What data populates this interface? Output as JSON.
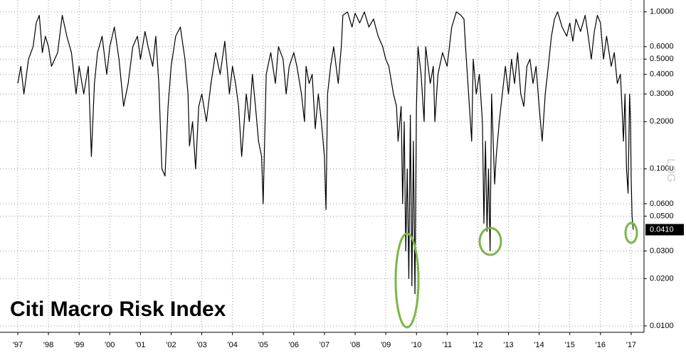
{
  "chart_data": {
    "type": "line",
    "title": "Citi Macro Risk Index",
    "scale_label": "LOG",
    "log_scale": true,
    "grid": true,
    "color": "#000000",
    "last_value": {
      "value": 0.041,
      "label": "0.0410"
    },
    "xlim": [
      1996.42,
      2017.42
    ],
    "xticks": [
      {
        "value": 1997,
        "label": "'97"
      },
      {
        "value": 1998,
        "label": "'98"
      },
      {
        "value": 1999,
        "label": "'99"
      },
      {
        "value": 2000,
        "label": "'00"
      },
      {
        "value": 2001,
        "label": "'01"
      },
      {
        "value": 2002,
        "label": "'02"
      },
      {
        "value": 2003,
        "label": "'03"
      },
      {
        "value": 2004,
        "label": "'04"
      },
      {
        "value": 2005,
        "label": "'05"
      },
      {
        "value": 2006,
        "label": "'06"
      },
      {
        "value": 2007,
        "label": "'07"
      },
      {
        "value": 2008,
        "label": "'08"
      },
      {
        "value": 2009,
        "label": "'09"
      },
      {
        "value": 2010,
        "label": "'10"
      },
      {
        "value": 2011,
        "label": "'11"
      },
      {
        "value": 2012,
        "label": "'12"
      },
      {
        "value": 2013,
        "label": "'13"
      },
      {
        "value": 2014,
        "label": "'14"
      },
      {
        "value": 2015,
        "label": "'15"
      },
      {
        "value": 2016,
        "label": "'16"
      },
      {
        "value": 2017,
        "label": "'17"
      }
    ],
    "ylim": [
      0.0091,
      1.19
    ],
    "yticks": [
      {
        "value": 1,
        "label": "1.0000"
      },
      {
        "value": 0.6,
        "label": "0.6000"
      },
      {
        "value": 0.5,
        "label": "0.5000"
      },
      {
        "value": 0.4,
        "label": "0.4000"
      },
      {
        "value": 0.3,
        "label": "0.3000"
      },
      {
        "value": 0.2,
        "label": "0.2000"
      },
      {
        "value": 0.1,
        "label": "0.1000"
      },
      {
        "value": 0.06,
        "label": "0.0600"
      },
      {
        "value": 0.05,
        "label": "0.0500"
      },
      {
        "value": 0.03,
        "label": "0.0300"
      },
      {
        "value": 0.02,
        "label": "0.0200"
      },
      {
        "value": 0.01,
        "label": "0.0100"
      }
    ],
    "x": [
      1997.0,
      1997.1,
      1997.2,
      1997.35,
      1997.5,
      1997.6,
      1997.7,
      1997.8,
      1997.9,
      1998.0,
      1998.1,
      1998.3,
      1998.45,
      1998.6,
      1998.75,
      1998.9,
      1999.0,
      1999.15,
      1999.3,
      1999.4,
      1999.5,
      1999.6,
      1999.75,
      1999.9,
      2000.0,
      2000.15,
      2000.3,
      2000.45,
      2000.6,
      2000.75,
      2000.9,
      2001.0,
      2001.15,
      2001.25,
      2001.4,
      2001.5,
      2001.6,
      2001.7,
      2001.8,
      2001.9,
      2002.0,
      2002.15,
      2002.3,
      2002.45,
      2002.55,
      2002.6,
      2002.7,
      2002.8,
      2002.9,
      2003.0,
      2003.15,
      2003.3,
      2003.45,
      2003.6,
      2003.75,
      2003.9,
      2004.0,
      2004.1,
      2004.2,
      2004.3,
      2004.45,
      2004.55,
      2004.65,
      2004.75,
      2004.85,
      2004.95,
      2005.0,
      2005.1,
      2005.25,
      2005.4,
      2005.5,
      2005.65,
      2005.75,
      2005.85,
      2006.0,
      2006.1,
      2006.25,
      2006.35,
      2006.4,
      2006.5,
      2006.6,
      2006.7,
      2006.8,
      2006.9,
      2007.0,
      2007.05,
      2007.1,
      2007.2,
      2007.3,
      2007.45,
      2007.55,
      2007.6,
      2007.75,
      2007.9,
      2008.0,
      2008.15,
      2008.3,
      2008.45,
      2008.6,
      2008.75,
      2008.9,
      2009.0,
      2009.1,
      2009.25,
      2009.35,
      2009.4,
      2009.5,
      2009.55,
      2009.6,
      2009.65,
      2009.7,
      2009.75,
      2009.8,
      2009.85,
      2009.9,
      2009.95,
      2010.0,
      2010.05,
      2010.15,
      2010.25,
      2010.3,
      2010.45,
      2010.55,
      2010.6,
      2010.7,
      2010.85,
      2011.0,
      2011.15,
      2011.3,
      2011.45,
      2011.55,
      2011.6,
      2011.7,
      2011.8,
      2011.85,
      2011.95,
      2012.05,
      2012.15,
      2012.2,
      2012.25,
      2012.3,
      2012.35,
      2012.4,
      2012.45,
      2012.55,
      2012.6,
      2012.7,
      2012.8,
      2012.9,
      2013.0,
      2013.1,
      2013.2,
      2013.3,
      2013.4,
      2013.5,
      2013.6,
      2013.7,
      2013.8,
      2013.9,
      2014.0,
      2014.1,
      2014.2,
      2014.3,
      2014.4,
      2014.5,
      2014.6,
      2014.75,
      2014.9,
      2015.0,
      2015.1,
      2015.2,
      2015.35,
      2015.5,
      2015.6,
      2015.7,
      2015.8,
      2015.9,
      2016.0,
      2016.1,
      2016.2,
      2016.35,
      2016.45,
      2016.55,
      2016.65,
      2016.7,
      2016.75,
      2016.8,
      2016.85,
      2016.9,
      2016.95,
      2016.98,
      2017.0,
      2017.03,
      2017.07
    ],
    "values": [
      0.35,
      0.45,
      0.3,
      0.5,
      0.6,
      0.85,
      0.95,
      0.55,
      0.7,
      0.6,
      0.45,
      0.55,
      0.95,
      0.7,
      0.55,
      0.3,
      0.45,
      0.3,
      0.45,
      0.12,
      0.35,
      0.55,
      0.7,
      0.4,
      0.6,
      0.8,
      0.5,
      0.25,
      0.35,
      0.6,
      0.7,
      0.5,
      0.75,
      0.6,
      0.45,
      0.7,
      0.35,
      0.1,
      0.09,
      0.25,
      0.45,
      0.7,
      0.8,
      0.5,
      0.3,
      0.14,
      0.2,
      0.1,
      0.25,
      0.3,
      0.2,
      0.35,
      0.55,
      0.4,
      0.65,
      0.3,
      0.45,
      0.35,
      0.25,
      0.12,
      0.3,
      0.2,
      0.4,
      0.25,
      0.15,
      0.12,
      0.06,
      0.4,
      0.55,
      0.35,
      0.6,
      0.5,
      0.3,
      0.45,
      0.55,
      0.45,
      0.3,
      0.2,
      0.45,
      0.35,
      0.4,
      0.18,
      0.3,
      0.2,
      0.12,
      0.055,
      0.3,
      0.45,
      0.6,
      0.35,
      0.6,
      0.95,
      1.0,
      0.8,
      0.98,
      0.85,
      1.0,
      0.8,
      0.9,
      0.7,
      0.6,
      0.5,
      0.45,
      0.3,
      0.25,
      0.15,
      0.25,
      0.06,
      0.2,
      0.03,
      0.1,
      0.02,
      0.22,
      0.018,
      0.15,
      0.016,
      0.25,
      0.6,
      0.4,
      0.2,
      0.6,
      0.35,
      0.45,
      0.2,
      0.4,
      0.55,
      0.45,
      0.8,
      1.0,
      0.95,
      0.9,
      0.6,
      0.3,
      0.15,
      0.5,
      0.3,
      0.4,
      0.2,
      0.045,
      0.15,
      0.04,
      0.1,
      0.03,
      0.3,
      0.08,
      0.12,
      0.2,
      0.3,
      0.45,
      0.3,
      0.5,
      0.35,
      0.55,
      0.3,
      0.25,
      0.45,
      0.5,
      0.35,
      0.45,
      0.25,
      0.15,
      0.3,
      0.45,
      0.7,
      0.9,
      1.0,
      0.8,
      0.7,
      0.85,
      0.65,
      0.9,
      0.75,
      0.95,
      0.7,
      0.5,
      0.75,
      0.95,
      0.85,
      0.5,
      0.7,
      0.45,
      0.55,
      0.35,
      0.4,
      0.25,
      0.15,
      0.3,
      0.1,
      0.07,
      0.3,
      0.2,
      0.09,
      0.05,
      0.041
    ]
  }
}
